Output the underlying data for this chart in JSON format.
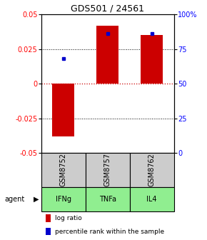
{
  "title": "GDS501 / 24561",
  "samples": [
    "GSM8752",
    "GSM8757",
    "GSM8762"
  ],
  "agents": [
    "IFNg",
    "TNFa",
    "IL4"
  ],
  "log_ratios": [
    -0.038,
    0.042,
    0.035
  ],
  "percentile_ranks": [
    68,
    86,
    86
  ],
  "ylim_left": [
    -0.05,
    0.05
  ],
  "ylim_right": [
    0,
    100
  ],
  "yticks_left": [
    -0.05,
    -0.025,
    0,
    0.025,
    0.05
  ],
  "ytick_labels_left": [
    "-0.05",
    "-0.025",
    "0",
    "0.025",
    "0.05"
  ],
  "yticks_right": [
    0,
    25,
    50,
    75,
    100
  ],
  "ytick_labels_right": [
    "0",
    "25",
    "50",
    "75",
    "100%"
  ],
  "bar_color": "#cc0000",
  "dot_color": "#0000cc",
  "sample_bg_color": "#cccccc",
  "agent_bg_color": "#90ee90",
  "hline_color": "#cc0000",
  "bar_width": 0.5,
  "legend_bar_label": "log ratio",
  "legend_dot_label": "percentile rank within the sample",
  "agent_label": "agent",
  "title_fontsize": 9,
  "tick_fontsize": 7,
  "legend_fontsize": 6.5,
  "table_fontsize": 7
}
